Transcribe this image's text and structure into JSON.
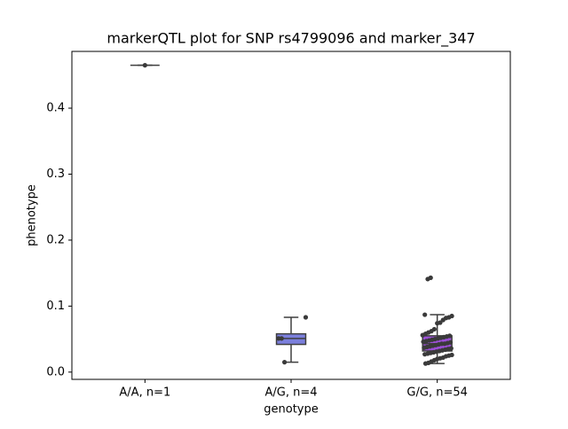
{
  "chart_data": {
    "type": "box",
    "title": "markerQTL plot for SNP rs4799096 and marker_347",
    "x_label": "genotype",
    "y_label": "phenotype",
    "categories": [
      "A/A, n=1",
      "A/G, n=4",
      "G/G, n=54"
    ],
    "colors": [
      "#5f8fd0",
      "#7b7fdc",
      "#9b4fd6"
    ],
    "boxes": [
      {
        "min": 0.465,
        "q1": 0.465,
        "median": 0.465,
        "q3": 0.465,
        "max": 0.465
      },
      {
        "min": 0.015,
        "q1": 0.042,
        "median": 0.051,
        "q3": 0.058,
        "max": 0.083
      },
      {
        "min": 0.013,
        "q1": 0.032,
        "median": 0.043,
        "q3": 0.055,
        "max": 0.087
      }
    ],
    "points": [
      [
        0.465
      ],
      [
        0.015,
        0.051,
        0.051,
        0.083
      ],
      [
        0.143,
        0.141,
        0.087,
        0.085,
        0.083,
        0.082,
        0.079,
        0.075,
        0.074,
        0.065,
        0.062,
        0.06,
        0.058,
        0.056,
        0.055,
        0.054,
        0.053,
        0.052,
        0.051,
        0.05,
        0.049,
        0.048,
        0.047,
        0.046,
        0.045,
        0.044,
        0.043,
        0.043,
        0.042,
        0.041,
        0.04,
        0.039,
        0.038,
        0.037,
        0.036,
        0.035,
        0.034,
        0.033,
        0.032,
        0.031,
        0.03,
        0.029,
        0.028,
        0.027,
        0.026,
        0.025,
        0.024,
        0.022,
        0.021,
        0.02,
        0.018,
        0.016,
        0.014,
        0.013
      ]
    ],
    "point_color": "#3a3a3a",
    "ylim": [
      -0.011,
      0.486
    ],
    "yticks": [
      {
        "value": 0,
        "label": "0.0"
      },
      0.1,
      0.2,
      0.3,
      0.4
    ]
  }
}
